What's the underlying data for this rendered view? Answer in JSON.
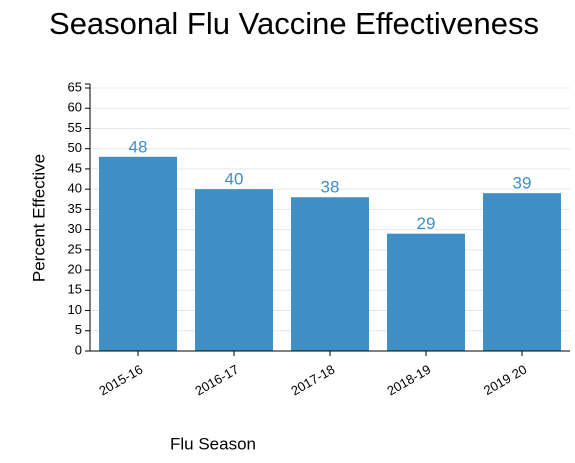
{
  "chart_data": {
    "type": "bar",
    "title": "Seasonal Flu Vaccine Effectiveness",
    "x_label": "Flu Season",
    "y_label": "Percent Effective",
    "categories": [
      "2015-16",
      "2016-17",
      "2017-18",
      "2018-19",
      "2019 20"
    ],
    "values": [
      48,
      40,
      38,
      29,
      39
    ],
    "color": "#3f8fc5",
    "ylim": [
      0,
      65
    ],
    "yticks": [
      0,
      5,
      10,
      15,
      20,
      25,
      30,
      35,
      40,
      45,
      50,
      55,
      60,
      65
    ],
    "grid": true
  }
}
